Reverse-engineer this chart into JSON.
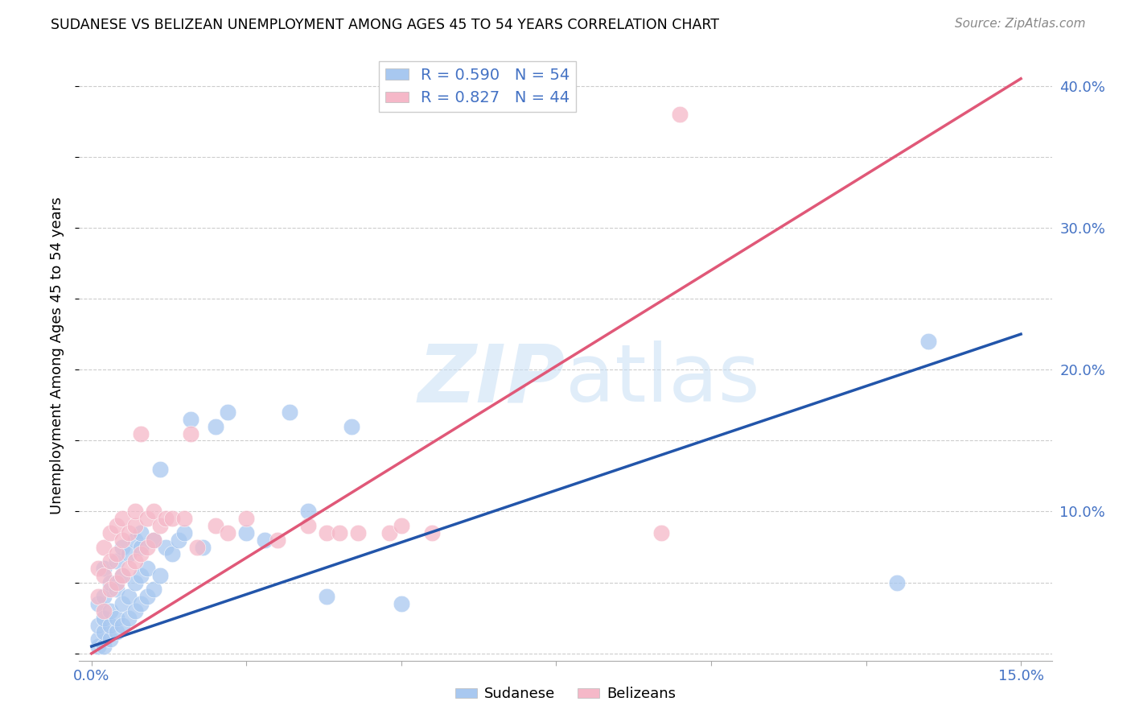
{
  "title": "SUDANESE VS BELIZEAN UNEMPLOYMENT AMONG AGES 45 TO 54 YEARS CORRELATION CHART",
  "source": "Source: ZipAtlas.com",
  "ylabel": "Unemployment Among Ages 45 to 54 years",
  "blue_R": 0.59,
  "blue_N": 54,
  "pink_R": 0.827,
  "pink_N": 44,
  "blue_color": "#A8C8F0",
  "pink_color": "#F5B8C8",
  "blue_line_color": "#2255AA",
  "pink_line_color": "#E05878",
  "watermark_color": "#C8DFF5",
  "legend_label_blue": "Sudanese",
  "legend_label_pink": "Belizeans",
  "xlim": [
    -0.002,
    0.155
  ],
  "ylim": [
    -0.005,
    0.425
  ],
  "blue_line_x0": 0.0,
  "blue_line_y0": 0.005,
  "blue_line_x1": 0.15,
  "blue_line_y1": 0.225,
  "pink_line_x0": 0.0,
  "pink_line_y0": 0.0,
  "pink_line_x1": 0.15,
  "pink_line_y1": 0.405,
  "sudanese_x": [
    0.001,
    0.001,
    0.001,
    0.001,
    0.002,
    0.002,
    0.002,
    0.002,
    0.002,
    0.003,
    0.003,
    0.003,
    0.003,
    0.004,
    0.004,
    0.004,
    0.004,
    0.005,
    0.005,
    0.005,
    0.005,
    0.006,
    0.006,
    0.006,
    0.007,
    0.007,
    0.007,
    0.008,
    0.008,
    0.008,
    0.008,
    0.009,
    0.009,
    0.01,
    0.01,
    0.011,
    0.011,
    0.012,
    0.013,
    0.014,
    0.015,
    0.016,
    0.018,
    0.02,
    0.022,
    0.025,
    0.028,
    0.032,
    0.035,
    0.038,
    0.042,
    0.05,
    0.13,
    0.135
  ],
  "sudanese_y": [
    0.005,
    0.01,
    0.02,
    0.035,
    0.005,
    0.015,
    0.025,
    0.04,
    0.06,
    0.01,
    0.02,
    0.03,
    0.05,
    0.015,
    0.025,
    0.045,
    0.065,
    0.02,
    0.035,
    0.055,
    0.075,
    0.025,
    0.04,
    0.07,
    0.03,
    0.05,
    0.08,
    0.035,
    0.055,
    0.075,
    0.085,
    0.04,
    0.06,
    0.045,
    0.08,
    0.055,
    0.13,
    0.075,
    0.07,
    0.08,
    0.085,
    0.165,
    0.075,
    0.16,
    0.17,
    0.085,
    0.08,
    0.17,
    0.1,
    0.04,
    0.16,
    0.035,
    0.05,
    0.22
  ],
  "belizean_x": [
    0.001,
    0.001,
    0.002,
    0.002,
    0.002,
    0.003,
    0.003,
    0.003,
    0.004,
    0.004,
    0.004,
    0.005,
    0.005,
    0.005,
    0.006,
    0.006,
    0.007,
    0.007,
    0.007,
    0.008,
    0.008,
    0.009,
    0.009,
    0.01,
    0.01,
    0.011,
    0.012,
    0.013,
    0.015,
    0.016,
    0.017,
    0.02,
    0.022,
    0.025,
    0.03,
    0.035,
    0.038,
    0.04,
    0.043,
    0.048,
    0.05,
    0.055,
    0.092,
    0.095
  ],
  "belizean_y": [
    0.04,
    0.06,
    0.03,
    0.055,
    0.075,
    0.045,
    0.065,
    0.085,
    0.05,
    0.07,
    0.09,
    0.055,
    0.08,
    0.095,
    0.06,
    0.085,
    0.065,
    0.09,
    0.1,
    0.07,
    0.155,
    0.075,
    0.095,
    0.08,
    0.1,
    0.09,
    0.095,
    0.095,
    0.095,
    0.155,
    0.075,
    0.09,
    0.085,
    0.095,
    0.08,
    0.09,
    0.085,
    0.085,
    0.085,
    0.085,
    0.09,
    0.085,
    0.085,
    0.38
  ]
}
